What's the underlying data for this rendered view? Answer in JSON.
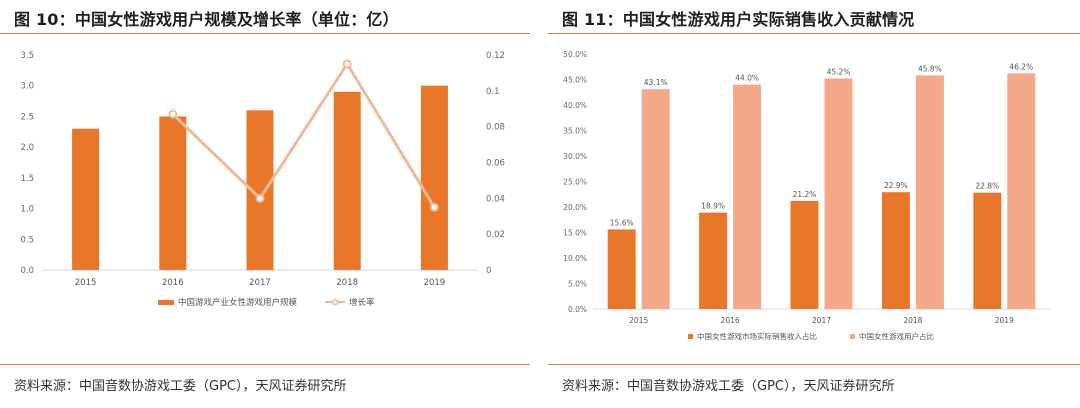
{
  "panels": {
    "left": {
      "title": "图 10：中国女性游戏用户规模及增长率（单位：亿）",
      "source": "资料来源：中国音数协游戏工委（GPC），天风证券研究所"
    },
    "right": {
      "title": "图 11：中国女性游戏用户实际销售收入贡献情况",
      "source": "资料来源：中国音数协游戏工委（GPC），天风证券研究所"
    }
  },
  "colors": {
    "rule": "#e07a3a",
    "bar_orange": "#e8772a",
    "line_peach": "#f0b99a",
    "bar_light": "#f4a98a"
  },
  "chart_data": [
    {
      "type": "bar",
      "title": "",
      "categories": [
        "2015",
        "2016",
        "2017",
        "2018",
        "2019"
      ],
      "ylim": [
        0,
        3.5
      ],
      "yticks": [
        "0.0",
        "0.5",
        "1.0",
        "1.5",
        "2.0",
        "2.5",
        "3.0",
        "3.5"
      ],
      "y2lim": [
        0,
        0.12
      ],
      "y2ticks": [
        "0",
        "0.02",
        "0.04",
        "0.06",
        "0.08",
        "0.1",
        "0.12"
      ],
      "series": [
        {
          "name": "中国游戏产业女性游戏用户规模",
          "type": "bar",
          "axis": "left",
          "values": [
            2.3,
            2.5,
            2.6,
            2.9,
            3.0
          ]
        },
        {
          "name": "增长率",
          "type": "line",
          "axis": "right",
          "values": [
            null,
            0.087,
            0.04,
            0.115,
            0.035
          ]
        }
      ],
      "legend": "bottom",
      "grid": false
    },
    {
      "type": "bar",
      "title": "",
      "categories": [
        "2015",
        "2016",
        "2017",
        "2018",
        "2019"
      ],
      "ylim": [
        0,
        50
      ],
      "yticks": [
        "0.0%",
        "5.0%",
        "10.0%",
        "15.0%",
        "20.0%",
        "25.0%",
        "30.0%",
        "35.0%",
        "40.0%",
        "45.0%",
        "50.0%"
      ],
      "series": [
        {
          "name": "中国女性游戏市场实际销售收入占比",
          "values": [
            15.6,
            18.9,
            21.2,
            22.9,
            22.8
          ],
          "labels": [
            "15.6%",
            "18.9%",
            "21.2%",
            "22.9%",
            "22.8%"
          ]
        },
        {
          "name": "中国女性游戏用户占比",
          "values": [
            43.1,
            44.0,
            45.2,
            45.8,
            46.2
          ],
          "labels": [
            "43.1%",
            "44.0%",
            "45.2%",
            "45.8%",
            "46.2%"
          ]
        }
      ],
      "legend": "bottom",
      "grid": false
    }
  ]
}
